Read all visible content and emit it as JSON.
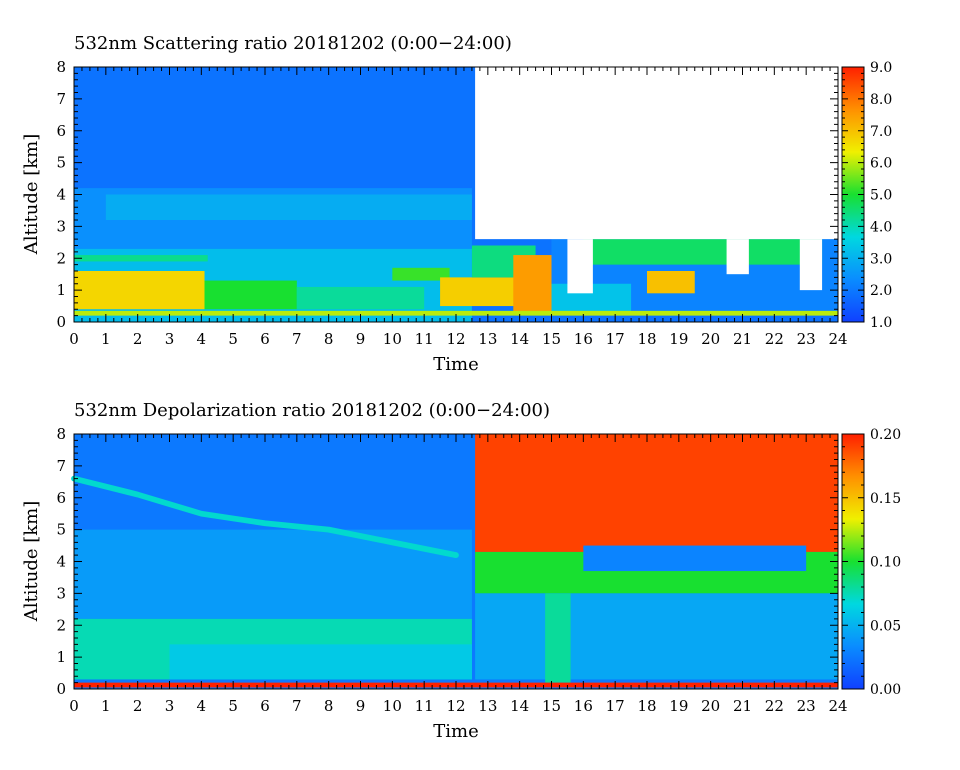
{
  "colors": {
    "colormap": [
      "#1040ff",
      "#0a8cff",
      "#00d8e0",
      "#18e030",
      "#f0f000",
      "#ff9000",
      "#ff2000"
    ],
    "axis": "#000000",
    "background": "#ffffff"
  },
  "chart_data": [
    {
      "type": "heatmap",
      "title": "532nm Scattering ratio  20181202 (0:00−24:00)",
      "xlabel": "Time",
      "ylabel": "Altitude [km]",
      "xlim": [
        0,
        24
      ],
      "ylim": [
        0,
        8
      ],
      "xticks": [
        "0",
        "1",
        "2",
        "3",
        "4",
        "5",
        "6",
        "7",
        "8",
        "9",
        "10",
        "11",
        "12",
        "13",
        "14",
        "15",
        "16",
        "17",
        "18",
        "19",
        "20",
        "21",
        "22",
        "23",
        "24"
      ],
      "yticks": [
        "0",
        "1",
        "2",
        "3",
        "4",
        "5",
        "6",
        "7",
        "8"
      ],
      "colorbar": {
        "min": 1.0,
        "max": 9.0,
        "ticks": [
          "1.0",
          "2.0",
          "3.0",
          "4.0",
          "5.0",
          "6.0",
          "7.0",
          "8.0",
          "9.0"
        ]
      },
      "regions": [
        {
          "x0": 0,
          "x1": 24,
          "y0": 0,
          "y1": 8,
          "value": 1.9
        },
        {
          "x0": 0,
          "x1": 12.5,
          "y0": 0,
          "y1": 2.3,
          "value": 3.2
        },
        {
          "x0": 0,
          "x1": 12.5,
          "y0": 2.3,
          "y1": 4.2,
          "value": 2.4
        },
        {
          "x0": 1,
          "x1": 12.5,
          "y0": 3.2,
          "y1": 4.0,
          "value": 2.9
        },
        {
          "x0": 0,
          "x1": 4.2,
          "y0": 1.9,
          "y1": 2.1,
          "value": 4.3
        },
        {
          "x0": 0,
          "x1": 4.1,
          "y0": 0.4,
          "y1": 1.6,
          "value": 6.7
        },
        {
          "x0": 4.1,
          "x1": 7,
          "y0": 0.4,
          "y1": 1.3,
          "value": 5.0
        },
        {
          "x0": 7,
          "x1": 11,
          "y0": 0.4,
          "y1": 1.1,
          "value": 4.2
        },
        {
          "x0": 10,
          "x1": 11.8,
          "y0": 1.3,
          "y1": 1.7,
          "value": 5.2
        },
        {
          "x0": 11.5,
          "x1": 14.2,
          "y0": 0.5,
          "y1": 1.4,
          "value": 6.8
        },
        {
          "x0": 12.5,
          "x1": 14.5,
          "y0": 1.4,
          "y1": 2.4,
          "value": 4.4
        },
        {
          "x0": 13.8,
          "x1": 15,
          "y0": 0.3,
          "y1": 2.1,
          "value": 7.5
        },
        {
          "x0": 15,
          "x1": 24,
          "y0": 0.3,
          "y1": 2.6,
          "value": 2.2
        },
        {
          "x0": 15,
          "x1": 17.5,
          "y0": 0.3,
          "y1": 1.2,
          "value": 3.3
        },
        {
          "x0": 18,
          "x1": 19.5,
          "y0": 0.9,
          "y1": 1.6,
          "value": 7.0
        },
        {
          "x0": 16,
          "x1": 23.5,
          "y0": 1.8,
          "y1": 2.6,
          "value": 4.6
        },
        {
          "x0": 0,
          "x1": 24,
          "y0": 0.2,
          "y1": 0.35,
          "value": 6.0
        },
        {
          "x0": 12.6,
          "x1": 24,
          "y0": 2.6,
          "y1": 8,
          "value": null
        },
        {
          "x0": 15.5,
          "x1": 16.3,
          "y0": 0.9,
          "y1": 2.6,
          "value": null
        },
        {
          "x0": 20.5,
          "x1": 21.2,
          "y0": 1.5,
          "y1": 2.6,
          "value": null
        },
        {
          "x0": 22.8,
          "x1": 23.5,
          "y0": 1.0,
          "y1": 2.6,
          "value": null
        }
      ]
    },
    {
      "type": "heatmap",
      "title": "532nm Depolarization ratio  20181202 (0:00−24:00)",
      "xlabel": "Time",
      "ylabel": "Altitude [km]",
      "xlim": [
        0,
        24
      ],
      "ylim": [
        0,
        8
      ],
      "xticks": [
        "0",
        "1",
        "2",
        "3",
        "4",
        "5",
        "6",
        "7",
        "8",
        "9",
        "10",
        "11",
        "12",
        "13",
        "14",
        "15",
        "16",
        "17",
        "18",
        "19",
        "20",
        "21",
        "22",
        "23",
        "24"
      ],
      "yticks": [
        "0",
        "1",
        "2",
        "3",
        "4",
        "5",
        "6",
        "7",
        "8"
      ],
      "colorbar": {
        "min": 0.0,
        "max": 0.2,
        "ticks": [
          "0.00",
          "0.05",
          "0.10",
          "0.15",
          "0.20"
        ]
      },
      "regions": [
        {
          "x0": 0,
          "x1": 24,
          "y0": 0,
          "y1": 8,
          "value": 0.025
        },
        {
          "x0": 0,
          "x1": 12.5,
          "y0": 2.2,
          "y1": 5.0,
          "value": 0.04
        },
        {
          "x0": 0,
          "x1": 12.5,
          "y0": 0.3,
          "y1": 2.2,
          "value": 0.075
        },
        {
          "x0": 3,
          "x1": 12.5,
          "y0": 0.3,
          "y1": 1.4,
          "value": 0.06
        },
        {
          "x0": 12.6,
          "x1": 24,
          "y0": 4.3,
          "y1": 8,
          "value": 0.19
        },
        {
          "x0": 12.6,
          "x1": 24,
          "y0": 3.0,
          "y1": 4.3,
          "value": 0.1
        },
        {
          "x0": 16,
          "x1": 23,
          "y0": 3.7,
          "y1": 4.5,
          "value": 0.03
        },
        {
          "x0": 12.6,
          "x1": 24,
          "y0": 0.3,
          "y1": 3.0,
          "value": 0.045
        },
        {
          "x0": 14.8,
          "x1": 15.6,
          "y0": 0.2,
          "y1": 3.0,
          "value": 0.08
        },
        {
          "x0": 0,
          "x1": 24,
          "y0": 0.05,
          "y1": 0.2,
          "value": 0.2
        }
      ],
      "bands": [
        {
          "name": "",
          "points": [
            [
              0,
              6.6
            ],
            [
              2,
              6.1
            ],
            [
              4,
              5.5
            ],
            [
              6,
              5.2
            ],
            [
              8,
              5.0
            ],
            [
              10,
              4.6
            ],
            [
              12,
              4.2
            ]
          ],
          "width": 0.18,
          "value": 0.07
        }
      ]
    }
  ]
}
